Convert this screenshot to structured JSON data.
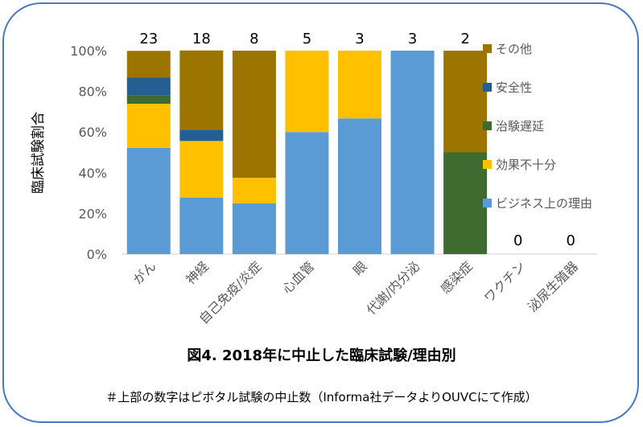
{
  "chart_data": {
    "type": "bar",
    "stacked": true,
    "percent": true,
    "ylabel": "臨床試験割合",
    "yticks": [
      "0%",
      "20%",
      "40%",
      "60%",
      "80%",
      "100%"
    ],
    "ylim": [
      0,
      100
    ],
    "categories": [
      "がん",
      "神経",
      "自己免疫/炎症",
      "心血管",
      "眼",
      "代謝/内分泌",
      "感染症",
      "ワクチン",
      "泌尿生殖器"
    ],
    "counts": [
      "23",
      "18",
      "8",
      "5",
      "3",
      "3",
      "2",
      "0",
      "0"
    ],
    "series": [
      {
        "name": "ビジネス上の理由",
        "color": "#5b9bd5",
        "values": [
          52.2,
          27.8,
          25.0,
          60.0,
          66.7,
          100.0,
          0,
          0,
          0
        ]
      },
      {
        "name": "効果不十分",
        "color": "#ffc000",
        "values": [
          21.7,
          27.8,
          12.5,
          40.0,
          33.3,
          0,
          0,
          0,
          0
        ]
      },
      {
        "name": "治験遅延",
        "color": "#3e6b2f",
        "values": [
          4.3,
          0,
          0,
          0,
          0,
          0,
          50.0,
          0,
          0
        ]
      },
      {
        "name": "安全性",
        "color": "#255e91",
        "values": [
          8.7,
          5.6,
          0,
          0,
          0,
          0,
          0,
          0,
          0
        ]
      },
      {
        "name": "その他",
        "color": "#9c7400",
        "values": [
          13.0,
          38.9,
          62.5,
          0,
          0,
          0,
          50.0,
          0,
          0
        ]
      }
    ],
    "legend_position": "right",
    "grid": false
  },
  "caption": "図4. 2018年に中止した臨床試験/理由別",
  "note": "＃上部の数字はピボタル試験の中止数（Informa社データよりOUVCにて作成）"
}
